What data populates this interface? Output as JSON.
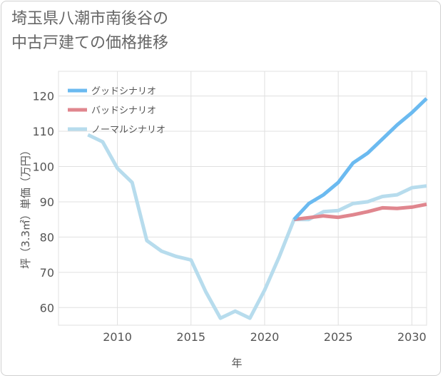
{
  "title_line1": "埼玉県八潮市南後谷の",
  "title_line2": "中古戸建ての価格推移",
  "chart_data": {
    "type": "line",
    "xlabel": "年",
    "ylabel": "坪（3.3㎡）単価（万円）",
    "xlim": [
      2006,
      2031
    ],
    "ylim": [
      55,
      127
    ],
    "xticks": [
      2010,
      2015,
      2020,
      2025,
      2030
    ],
    "yticks": [
      60,
      70,
      80,
      90,
      100,
      110,
      120
    ],
    "grid": true,
    "legend_position": "top-left",
    "series": [
      {
        "name": "グッドシナリオ",
        "color": "#6bbaf0",
        "points": [
          [
            2022,
            85
          ],
          [
            2023,
            89.5
          ],
          [
            2024,
            92
          ],
          [
            2025,
            95.5
          ],
          [
            2026,
            101
          ],
          [
            2027,
            103.8
          ],
          [
            2028,
            107.8
          ],
          [
            2029,
            111.8
          ],
          [
            2030,
            115.3
          ],
          [
            2031,
            119.3
          ]
        ]
      },
      {
        "name": "バッドシナリオ",
        "color": "#e0868e",
        "points": [
          [
            2022,
            85
          ],
          [
            2023,
            85.5
          ],
          [
            2024,
            86
          ],
          [
            2025,
            85.6
          ],
          [
            2026,
            86.3
          ],
          [
            2027,
            87.2
          ],
          [
            2028,
            88.3
          ],
          [
            2029,
            88.1
          ],
          [
            2030,
            88.5
          ],
          [
            2031,
            89.3
          ]
        ]
      },
      {
        "name": "ノーマルシナリオ",
        "color": "#b7dced",
        "points": [
          [
            2008,
            109
          ],
          [
            2009,
            107
          ],
          [
            2010,
            99.5
          ],
          [
            2011,
            95.5
          ],
          [
            2012,
            79
          ],
          [
            2013,
            76
          ],
          [
            2014,
            74.5
          ],
          [
            2015,
            73.5
          ],
          [
            2016,
            64.5
          ],
          [
            2017,
            57
          ],
          [
            2018,
            59
          ],
          [
            2019,
            57
          ],
          [
            2020,
            65
          ],
          [
            2021,
            74.5
          ],
          [
            2022,
            85
          ],
          [
            2023,
            85
          ],
          [
            2024,
            87.2
          ],
          [
            2025,
            87.5
          ],
          [
            2026,
            89.5
          ],
          [
            2027,
            90
          ],
          [
            2028,
            91.5
          ],
          [
            2029,
            92
          ],
          [
            2030,
            94
          ],
          [
            2031,
            94.5
          ]
        ]
      }
    ]
  }
}
